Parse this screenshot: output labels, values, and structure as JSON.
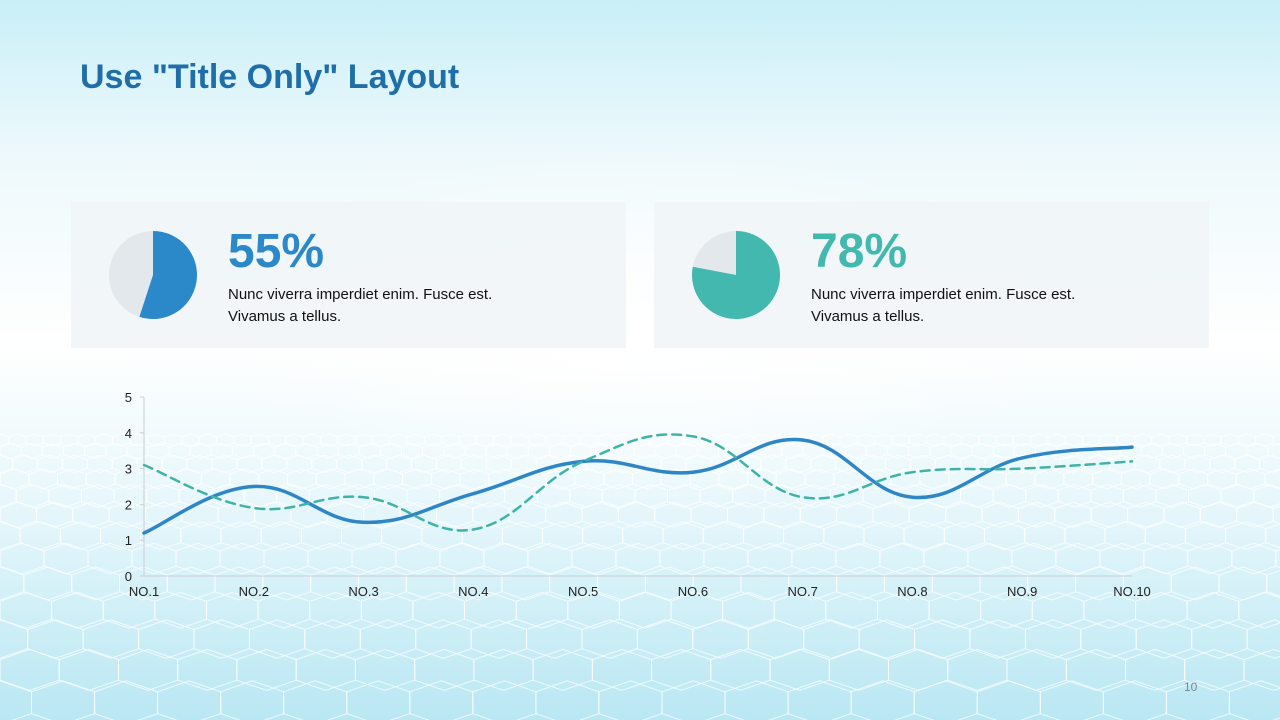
{
  "slide": {
    "title": "Use \"Title Only\" Layout",
    "page_number": "10"
  },
  "cards": [
    {
      "value": 55,
      "value_label": "55%",
      "description_line1": "Nunc viverra imperdiet enim. Fusce est.",
      "description_line2": "Vivamus a tellus.",
      "color": "#2b88c9",
      "rest_color": "#e3e8ed"
    },
    {
      "value": 78,
      "value_label": "78%",
      "description_line1": "Nunc viverra imperdiet enim. Fusce est.",
      "description_line2": "Vivamus a tellus.",
      "color": "#42b8af",
      "rest_color": "#e3e8ed"
    }
  ],
  "chart_data": {
    "type": "line",
    "categories": [
      "NO.1",
      "NO.2",
      "NO.3",
      "NO.4",
      "NO.5",
      "NO.6",
      "NO.7",
      "NO.8",
      "NO.9",
      "NO.10"
    ],
    "series": [
      {
        "values": [
          1.2,
          2.5,
          1.5,
          2.3,
          3.2,
          2.9,
          3.8,
          2.2,
          3.3,
          3.6
        ],
        "color": "#2f86c6",
        "style": "solid",
        "smooth": true
      },
      {
        "values": [
          3.1,
          1.9,
          2.2,
          1.3,
          3.2,
          3.9,
          2.2,
          2.9,
          3.0,
          3.2
        ],
        "color": "#3fb3a8",
        "style": "dashed",
        "smooth": true
      }
    ],
    "yticks": [
      "0",
      "1",
      "2",
      "3",
      "4",
      "5"
    ],
    "ylim": [
      0,
      5
    ],
    "grid": false,
    "legend": false
  }
}
